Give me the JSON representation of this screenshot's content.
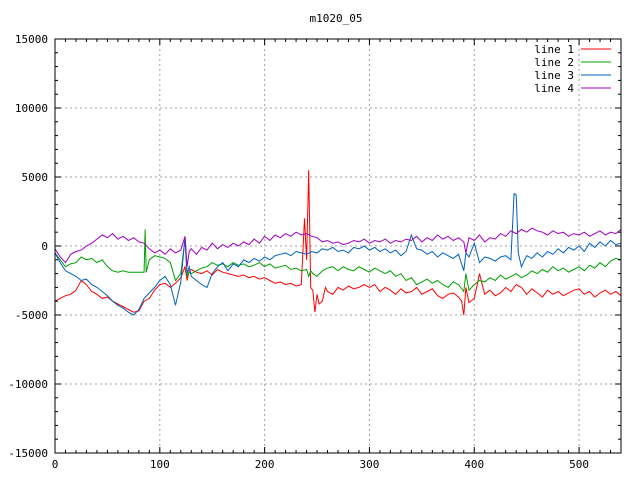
{
  "chart_data": {
    "type": "line",
    "title": "m1020_05",
    "xlabel": "",
    "ylabel": "",
    "xlim": [
      0,
      540
    ],
    "ylim": [
      -15000,
      15000
    ],
    "xticks": [
      0,
      100,
      200,
      300,
      400,
      500
    ],
    "yticks": [
      -15000,
      -10000,
      -5000,
      0,
      5000,
      10000,
      15000
    ],
    "grid": true,
    "legend_position": "top-right",
    "series": [
      {
        "name": "line 1",
        "color": "#ff0000",
        "x": [
          0,
          5,
          10,
          15,
          20,
          25,
          30,
          35,
          40,
          45,
          50,
          55,
          60,
          65,
          70,
          75,
          80,
          85,
          90,
          95,
          100,
          105,
          110,
          115,
          120,
          124,
          126,
          128,
          130,
          135,
          140,
          145,
          150,
          155,
          160,
          165,
          170,
          175,
          180,
          185,
          190,
          195,
          200,
          205,
          210,
          215,
          220,
          225,
          230,
          235,
          238,
          240,
          242,
          244,
          246,
          248,
          250,
          252,
          255,
          258,
          260,
          265,
          270,
          275,
          280,
          285,
          290,
          295,
          300,
          305,
          310,
          315,
          320,
          325,
          330,
          335,
          340,
          345,
          350,
          355,
          360,
          365,
          370,
          375,
          380,
          385,
          388,
          390,
          392,
          395,
          400,
          405,
          410,
          415,
          420,
          425,
          430,
          435,
          440,
          445,
          450,
          455,
          460,
          465,
          470,
          475,
          480,
          485,
          490,
          495,
          500,
          505,
          510,
          515,
          520,
          525,
          530,
          535,
          540
        ],
        "y": [
          -4000,
          -3800,
          -3600,
          -3500,
          -3200,
          -2500,
          -2800,
          -3300,
          -3500,
          -3800,
          -3700,
          -4000,
          -4200,
          -4400,
          -4600,
          -4800,
          -4700,
          -4000,
          -3800,
          -3200,
          -2800,
          -2700,
          -3000,
          -2700,
          -2300,
          -1500,
          -2500,
          -1800,
          -1700,
          -1900,
          -2000,
          -1800,
          -2100,
          -1700,
          -1900,
          -2000,
          -2100,
          -2200,
          -2100,
          -2300,
          -2200,
          -2400,
          -2300,
          -2500,
          -2700,
          -2600,
          -2800,
          -2700,
          -2900,
          -2800,
          2000,
          -1000,
          5500,
          -3000,
          -3200,
          -4800,
          -3500,
          -4200,
          -4000,
          -3000,
          -3300,
          -3500,
          -3000,
          -3200,
          -2900,
          -3100,
          -3000,
          -2800,
          -3000,
          -2800,
          -3300,
          -3000,
          -3200,
          -3500,
          -3100,
          -3400,
          -3300,
          -3000,
          -3500,
          -3300,
          -3100,
          -3600,
          -3800,
          -3500,
          -3400,
          -3700,
          -4000,
          -5000,
          -3000,
          -4100,
          -3800,
          -2000,
          -3500,
          -3200,
          -3600,
          -3400,
          -3000,
          -3300,
          -2800,
          -3000,
          -3500,
          -3100,
          -3400,
          -3700,
          -3200,
          -3500,
          -3300,
          -3600,
          -3400,
          -3200,
          -3100,
          -3500,
          -3300,
          -3700,
          -3400,
          -3200,
          -3500,
          -3300,
          -3600
        ]
      },
      {
        "name": "line 2",
        "color": "#00a000",
        "x": [
          0,
          5,
          10,
          15,
          20,
          25,
          30,
          35,
          40,
          45,
          50,
          55,
          60,
          65,
          70,
          75,
          80,
          85,
          86,
          87,
          90,
          95,
          100,
          105,
          110,
          115,
          120,
          124,
          126,
          128,
          130,
          135,
          140,
          145,
          150,
          155,
          160,
          165,
          170,
          175,
          180,
          185,
          190,
          195,
          200,
          205,
          210,
          215,
          220,
          225,
          230,
          235,
          240,
          242,
          244,
          246,
          250,
          255,
          260,
          265,
          270,
          275,
          280,
          285,
          290,
          295,
          300,
          305,
          310,
          315,
          320,
          325,
          330,
          335,
          340,
          345,
          350,
          355,
          360,
          365,
          370,
          375,
          380,
          385,
          390,
          392,
          395,
          400,
          405,
          410,
          415,
          420,
          425,
          430,
          435,
          440,
          445,
          450,
          455,
          460,
          465,
          470,
          475,
          480,
          485,
          490,
          495,
          500,
          505,
          510,
          515,
          520,
          525,
          530,
          535,
          540
        ],
        "y": [
          -500,
          -1000,
          -1500,
          -1300,
          -1200,
          -800,
          -1000,
          -900,
          -1200,
          -1000,
          -1500,
          -1800,
          -1900,
          -1800,
          -1900,
          -1900,
          -1900,
          -1900,
          1200,
          -1900,
          -1000,
          -700,
          -800,
          -900,
          -1200,
          -2500,
          -2000,
          500,
          -2200,
          -1900,
          -2000,
          -1800,
          -1600,
          -1500,
          -1200,
          -1400,
          -1300,
          -1500,
          -1200,
          -1400,
          -1300,
          -1500,
          -1400,
          -1200,
          -1500,
          -1300,
          -1600,
          -1500,
          -1400,
          -1700,
          -1600,
          -1800,
          -1700,
          -2200,
          -1800,
          -2000,
          -2200,
          -1800,
          -1600,
          -1500,
          -1800,
          -1500,
          -1700,
          -1800,
          -1500,
          -1700,
          -1900,
          -1600,
          -1800,
          -2000,
          -1800,
          -2200,
          -2000,
          -2500,
          -2300,
          -2800,
          -2600,
          -2400,
          -2700,
          -2500,
          -2800,
          -3000,
          -2600,
          -2800,
          -3300,
          -2000,
          -3200,
          -2800,
          -2500,
          -2600,
          -2300,
          -2500,
          -2100,
          -2400,
          -2200,
          -2000,
          -2300,
          -2100,
          -1800,
          -2000,
          -1700,
          -1900,
          -1500,
          -1800,
          -1600,
          -1900,
          -1700,
          -1500,
          -1800,
          -1400,
          -1600,
          -1200,
          -1500,
          -1100,
          -900,
          -1000
        ]
      },
      {
        "name": "line 3",
        "color": "#0060c0",
        "x": [
          0,
          5,
          10,
          15,
          20,
          25,
          30,
          35,
          40,
          45,
          50,
          55,
          60,
          65,
          70,
          75,
          80,
          85,
          90,
          95,
          100,
          105,
          110,
          115,
          120,
          124,
          126,
          128,
          130,
          135,
          140,
          145,
          150,
          155,
          160,
          165,
          170,
          175,
          180,
          185,
          190,
          195,
          200,
          205,
          210,
          215,
          220,
          225,
          230,
          235,
          240,
          245,
          250,
          255,
          260,
          265,
          270,
          275,
          280,
          285,
          290,
          295,
          300,
          305,
          310,
          315,
          320,
          325,
          330,
          335,
          340,
          345,
          350,
          355,
          360,
          365,
          370,
          375,
          380,
          385,
          390,
          392,
          395,
          400,
          405,
          410,
          415,
          420,
          425,
          430,
          435,
          438,
          440,
          442,
          445,
          450,
          455,
          460,
          465,
          470,
          475,
          480,
          485,
          490,
          495,
          500,
          505,
          510,
          515,
          520,
          525,
          530,
          535,
          540
        ],
        "y": [
          -500,
          -1200,
          -1800,
          -2000,
          -2200,
          -2500,
          -2400,
          -2800,
          -3000,
          -3300,
          -3600,
          -4000,
          -4300,
          -4500,
          -4800,
          -5000,
          -4600,
          -3800,
          -3400,
          -3000,
          -2500,
          -2200,
          -2800,
          -4300,
          -2600,
          600,
          -2000,
          -1500,
          -2200,
          -2500,
          -2800,
          -3000,
          -2000,
          -1500,
          -1200,
          -1800,
          -1300,
          -1500,
          -1000,
          -1200,
          -900,
          -1100,
          -800,
          -1000,
          -700,
          -600,
          -500,
          -700,
          -400,
          -500,
          -600,
          -400,
          -500,
          -200,
          -300,
          -100,
          -400,
          -300,
          -500,
          -100,
          -200,
          0,
          -300,
          -100,
          -400,
          -200,
          -500,
          -300,
          -700,
          -400,
          800,
          -200,
          -300,
          -600,
          -400,
          -800,
          -500,
          -700,
          -900,
          -600,
          -1800,
          -500,
          -800,
          200,
          -1200,
          -800,
          -900,
          -1100,
          -800,
          -700,
          -1000,
          3800,
          3700,
          -500,
          -1500,
          -700,
          -900,
          -500,
          -800,
          -400,
          -600,
          -200,
          -500,
          -100,
          -300,
          0,
          -400,
          200,
          -100,
          300,
          0,
          400,
          100,
          200
        ]
      },
      {
        "name": "line 4",
        "color": "#a000c0",
        "x": [
          0,
          5,
          10,
          15,
          20,
          25,
          30,
          35,
          40,
          45,
          50,
          55,
          60,
          65,
          70,
          75,
          80,
          85,
          90,
          95,
          100,
          105,
          110,
          115,
          120,
          124,
          126,
          128,
          130,
          135,
          140,
          145,
          150,
          155,
          160,
          165,
          170,
          175,
          180,
          185,
          190,
          195,
          200,
          205,
          210,
          215,
          220,
          225,
          230,
          235,
          240,
          245,
          250,
          255,
          260,
          265,
          270,
          275,
          280,
          285,
          290,
          295,
          300,
          305,
          310,
          315,
          320,
          325,
          330,
          335,
          340,
          345,
          350,
          355,
          360,
          365,
          370,
          375,
          380,
          385,
          390,
          392,
          395,
          400,
          405,
          410,
          415,
          420,
          425,
          430,
          435,
          440,
          445,
          450,
          455,
          460,
          465,
          470,
          475,
          480,
          485,
          490,
          495,
          500,
          505,
          510,
          515,
          520,
          525,
          530,
          535,
          540
        ],
        "y": [
          -200,
          -800,
          -1200,
          -600,
          -400,
          -300,
          0,
          200,
          500,
          800,
          600,
          900,
          500,
          700,
          400,
          600,
          300,
          200,
          -200,
          -500,
          -300,
          -600,
          -200,
          -500,
          -300,
          700,
          -1500,
          -400,
          -200,
          -600,
          -100,
          -300,
          200,
          -200,
          100,
          -100,
          200,
          0,
          300,
          100,
          500,
          200,
          700,
          400,
          800,
          600,
          900,
          700,
          1000,
          800,
          900,
          700,
          600,
          300,
          400,
          200,
          300,
          100,
          200,
          400,
          300,
          500,
          200,
          400,
          300,
          500,
          200,
          400,
          300,
          500,
          400,
          700,
          300,
          600,
          400,
          800,
          500,
          700,
          400,
          600,
          300,
          -500,
          600,
          400,
          800,
          300,
          600,
          500,
          900,
          700,
          1100,
          900,
          1200,
          1000,
          1300,
          1100,
          1000,
          800,
          1100,
          900,
          1000,
          700,
          900,
          800,
          1000,
          700,
          900,
          1100,
          800,
          1000,
          900,
          1200
        ]
      }
    ]
  }
}
